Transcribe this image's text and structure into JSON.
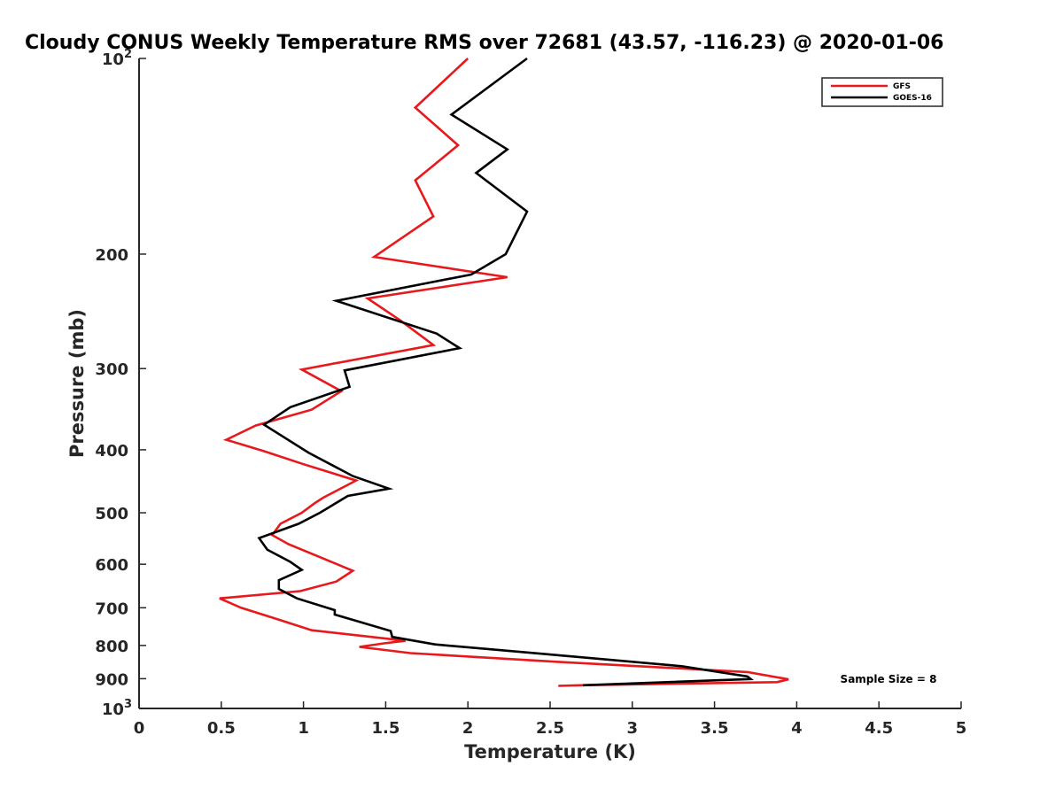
{
  "chart_data": {
    "type": "line",
    "title": "Cloudy CONUS Weekly Temperature RMS over 72681 (43.57, -116.23) @ 2020-01-06",
    "xlabel": "Temperature (K)",
    "ylabel": "Pressure (mb)",
    "xlim": [
      0,
      5
    ],
    "ylim": [
      1000,
      100
    ],
    "yscale": "log",
    "y_reversed": true,
    "xticks": [
      0,
      0.5,
      1,
      1.5,
      2,
      2.5,
      3,
      3.5,
      4,
      4.5,
      5
    ],
    "xtick_labels": [
      "0",
      "0.5",
      "1",
      "1.5",
      "2",
      "2.5",
      "3",
      "3.5",
      "4",
      "4.5",
      "5"
    ],
    "yticks": [
      {
        "value": 100,
        "base": "10",
        "exp": "2"
      },
      {
        "value": 200,
        "label": "200"
      },
      {
        "value": 300,
        "label": "300"
      },
      {
        "value": 400,
        "label": "400"
      },
      {
        "value": 500,
        "label": "500"
      },
      {
        "value": 600,
        "label": "600"
      },
      {
        "value": 700,
        "label": "700"
      },
      {
        "value": 800,
        "label": "800"
      },
      {
        "value": 900,
        "label": "900"
      },
      {
        "value": 1000,
        "base": "10",
        "exp": "3"
      }
    ],
    "grid": false,
    "legend_position": "top-right",
    "annotation": "Sample Size = 8",
    "series": [
      {
        "name": "GFS",
        "color": "#e8191c",
        "points": [
          [
            2.0,
            100
          ],
          [
            1.68,
            119
          ],
          [
            1.94,
            136
          ],
          [
            1.68,
            154
          ],
          [
            1.79,
            175
          ],
          [
            1.43,
            202
          ],
          [
            2.24,
            217
          ],
          [
            1.39,
            234
          ],
          [
            1.59,
            253
          ],
          [
            1.79,
            276
          ],
          [
            0.99,
            301
          ],
          [
            1.23,
            325
          ],
          [
            1.05,
            347
          ],
          [
            0.71,
            367
          ],
          [
            0.53,
            386
          ],
          [
            0.76,
            402
          ],
          [
            1.0,
            421
          ],
          [
            1.32,
            446
          ],
          [
            1.12,
            474
          ],
          [
            1.07,
            483
          ],
          [
            0.99,
            500
          ],
          [
            0.86,
            520
          ],
          [
            0.81,
            541
          ],
          [
            0.91,
            559
          ],
          [
            1.12,
            588
          ],
          [
            1.3,
            614
          ],
          [
            1.2,
            638
          ],
          [
            0.98,
            660
          ],
          [
            0.49,
            677
          ],
          [
            0.62,
            700
          ],
          [
            0.85,
            730
          ],
          [
            1.05,
            758
          ],
          [
            1.62,
            787
          ],
          [
            1.49,
            794
          ],
          [
            1.34,
            804
          ],
          [
            1.65,
            822
          ],
          [
            2.55,
            848
          ],
          [
            3.7,
            879
          ],
          [
            3.95,
            902
          ],
          [
            3.88,
            911
          ],
          [
            2.68,
            921
          ],
          [
            2.55,
            923
          ]
        ]
      },
      {
        "name": "GOES-16",
        "color": "#000000",
        "points": [
          [
            2.36,
            100
          ],
          [
            1.9,
            122
          ],
          [
            2.24,
            138
          ],
          [
            2.05,
            150
          ],
          [
            2.36,
            172
          ],
          [
            2.23,
            200
          ],
          [
            2.02,
            215
          ],
          [
            1.2,
            236
          ],
          [
            1.81,
            265
          ],
          [
            1.95,
            279
          ],
          [
            1.25,
            302
          ],
          [
            1.28,
            320
          ],
          [
            0.92,
            344
          ],
          [
            0.76,
            366
          ],
          [
            1.03,
            404
          ],
          [
            1.3,
            439
          ],
          [
            1.52,
            459
          ],
          [
            1.27,
            471
          ],
          [
            1.1,
            500
          ],
          [
            0.97,
            520
          ],
          [
            0.73,
            547
          ],
          [
            0.78,
            570
          ],
          [
            0.92,
            595
          ],
          [
            0.99,
            612
          ],
          [
            0.85,
            635
          ],
          [
            0.85,
            655
          ],
          [
            0.96,
            677
          ],
          [
            1.19,
            706
          ],
          [
            1.19,
            717
          ],
          [
            1.53,
            760
          ],
          [
            1.54,
            776
          ],
          [
            1.8,
            797
          ],
          [
            2.5,
            826
          ],
          [
            3.3,
            861
          ],
          [
            3.7,
            893
          ],
          [
            3.72,
            901
          ],
          [
            2.7,
            921
          ]
        ]
      }
    ]
  }
}
